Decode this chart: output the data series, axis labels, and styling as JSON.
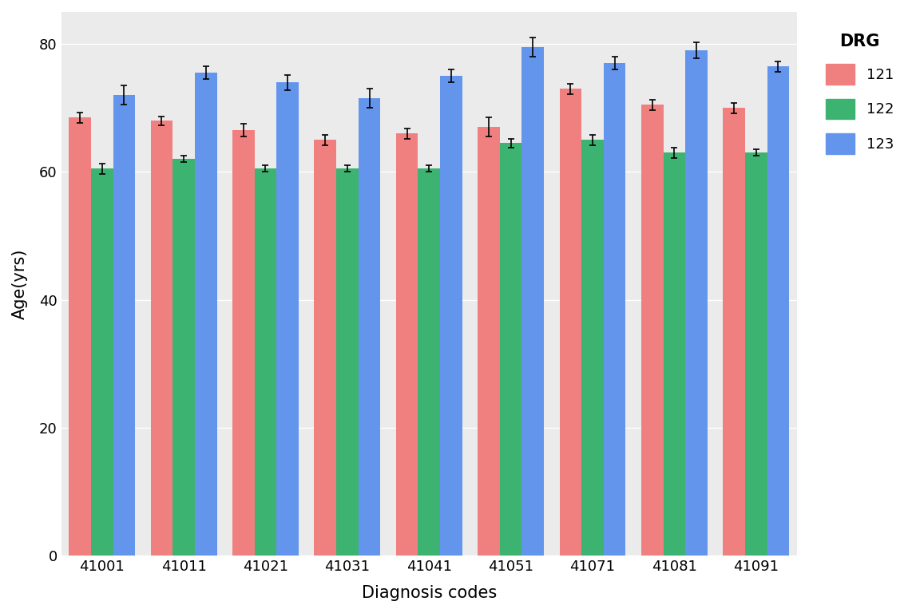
{
  "categories": [
    "41001",
    "41011",
    "41021",
    "41031",
    "41041",
    "41051",
    "41071",
    "41081",
    "41091"
  ],
  "drg_labels": [
    "121",
    "122",
    "123"
  ],
  "bar_colors": [
    "#F08080",
    "#3CB371",
    "#6495ED"
  ],
  "values": {
    "121": [
      68.5,
      68.0,
      66.5,
      65.0,
      66.0,
      67.0,
      73.0,
      70.5,
      70.0
    ],
    "122": [
      60.5,
      62.0,
      60.5,
      60.5,
      60.5,
      64.5,
      65.0,
      63.0,
      63.0
    ],
    "123": [
      72.0,
      75.5,
      74.0,
      71.5,
      75.0,
      79.5,
      77.0,
      79.0,
      76.5
    ]
  },
  "errors": {
    "121": [
      0.8,
      0.7,
      1.0,
      0.8,
      0.8,
      1.5,
      0.8,
      0.8,
      0.8
    ],
    "122": [
      0.8,
      0.5,
      0.5,
      0.5,
      0.5,
      0.7,
      0.8,
      0.8,
      0.5
    ],
    "123": [
      1.5,
      1.0,
      1.2,
      1.5,
      1.0,
      1.5,
      1.0,
      1.2,
      0.8
    ]
  },
  "xlabel": "Diagnosis codes",
  "ylabel": "Age(yrs)",
  "legend_title": "DRG",
  "ylim": [
    0,
    85
  ],
  "yticks": [
    0,
    20,
    40,
    60,
    80
  ],
  "plot_bg_color": "#EBEBEB",
  "fig_bg_color": "#FFFFFF",
  "legend_bg_color": "#FFFFFF",
  "grid_color": "#FFFFFF",
  "bar_width": 0.27
}
